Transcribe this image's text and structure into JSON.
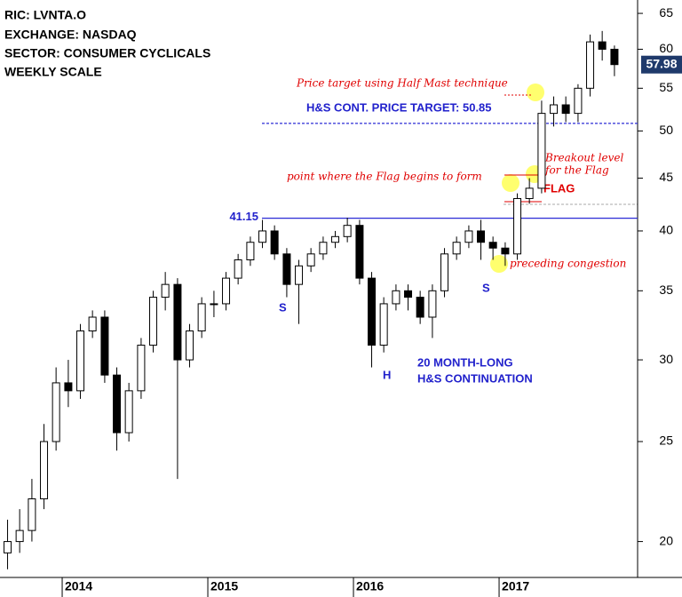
{
  "chart_data": {
    "type": "candlestick",
    "info_lines": [
      "RIC: LVNTA.O",
      "EXCHANGE: NASDAQ",
      "SECTOR: CONSUMER CYCLICALS",
      "WEEKLY SCALE"
    ],
    "x": [
      2013.625,
      2013.708,
      2013.792,
      2013.875,
      2013.958,
      2014.042,
      2014.125,
      2014.208,
      2014.292,
      2014.375,
      2014.458,
      2014.542,
      2014.625,
      2014.708,
      2014.792,
      2014.875,
      2014.958,
      2015.042,
      2015.125,
      2015.208,
      2015.292,
      2015.375,
      2015.458,
      2015.542,
      2015.625,
      2015.708,
      2015.792,
      2015.875,
      2015.958,
      2016.042,
      2016.125,
      2016.208,
      2016.292,
      2016.375,
      2016.458,
      2016.542,
      2016.625,
      2016.708,
      2016.792,
      2016.875,
      2016.958,
      2017.042,
      2017.125,
      2017.208,
      2017.292,
      2017.375,
      2017.458,
      2017.542,
      2017.625,
      2017.708,
      2017.792
    ],
    "open": [
      19.5,
      20,
      20.5,
      22,
      25,
      28.5,
      28,
      32,
      33,
      29,
      25.5,
      28,
      31,
      34.5,
      35.5,
      30,
      32,
      34,
      34,
      36,
      37.5,
      39,
      40,
      38,
      35.5,
      37,
      38,
      39,
      39.5,
      40.5,
      36,
      31,
      34,
      35,
      34.5,
      33,
      35,
      38,
      39,
      40,
      39,
      38.5,
      38,
      43,
      44,
      52,
      53,
      52,
      55,
      61,
      60
    ],
    "high": [
      21,
      21.5,
      23,
      26,
      29.5,
      30,
      32.5,
      33.5,
      33.5,
      29.5,
      28.5,
      31.5,
      35,
      36.5,
      36,
      32.5,
      34.5,
      35,
      36.5,
      38,
      39.5,
      41,
      40.5,
      38.5,
      37.5,
      38.5,
      39.5,
      40,
      41.2,
      41,
      36.5,
      34.5,
      35.5,
      35.5,
      35,
      35.5,
      38.5,
      39.5,
      40.5,
      41,
      39.5,
      39,
      43.5,
      45,
      53.5,
      54,
      54,
      55.5,
      62,
      62.5,
      60.5
    ],
    "low": [
      18.8,
      19.5,
      20,
      21.5,
      24.5,
      27,
      27.5,
      31.5,
      28.5,
      24.5,
      25,
      27.5,
      30.5,
      33.5,
      23,
      29.5,
      31.5,
      33,
      33.5,
      35.5,
      37,
      38.5,
      37.5,
      34.5,
      32.5,
      36.5,
      37.5,
      38.5,
      39,
      35.5,
      29.5,
      30.5,
      33.5,
      33.5,
      32.5,
      31.5,
      34.5,
      37.5,
      38.5,
      37.5,
      37.5,
      37,
      37.5,
      42.5,
      43.5,
      50.5,
      51,
      51,
      54,
      58.5,
      56.5
    ],
    "close": [
      20,
      20.5,
      22,
      25,
      28.5,
      28,
      32,
      33,
      29,
      25.5,
      28,
      31,
      34.5,
      35.5,
      30,
      32,
      34,
      34,
      36,
      37.5,
      39,
      40,
      38,
      35.5,
      37,
      38,
      39,
      39.5,
      40.5,
      36,
      31,
      34,
      35,
      34.5,
      33,
      35,
      38,
      39,
      40,
      39,
      38.5,
      38,
      43,
      44,
      52,
      53,
      52,
      55,
      61,
      60,
      57.98
    ],
    "up_color": "#ffffff",
    "down_color": "#000000",
    "outline_color": "#000000",
    "xlim": [
      2013.573,
      2017.951
    ],
    "xticks": [
      2014,
      2015,
      2016,
      2017
    ],
    "ylim": [
      18.46,
      66.97
    ],
    "log_scale": true,
    "yticks": [
      20,
      25,
      30,
      35,
      40,
      45,
      50,
      55,
      60,
      65
    ],
    "last_price": 57.98,
    "support_level": 41.15,
    "target_level": 50.85,
    "level_color": "#2b2bd6",
    "annotations": {
      "target": "H&S CONT. PRICE TARGET: 50.85",
      "half_mast": "Price target using Half Mast technique",
      "flag_begin": "point where the Flag begins to form",
      "breakout_1": "Breakout level",
      "breakout_2": "for the Flag",
      "flag": "FLAG",
      "congestion": "preceding congestion",
      "left_shoulder": "S",
      "head": "H",
      "right_shoulder": "S",
      "pattern_1": "20 MONTH-LONG",
      "pattern_2": "H&S CONTINUATION"
    }
  }
}
